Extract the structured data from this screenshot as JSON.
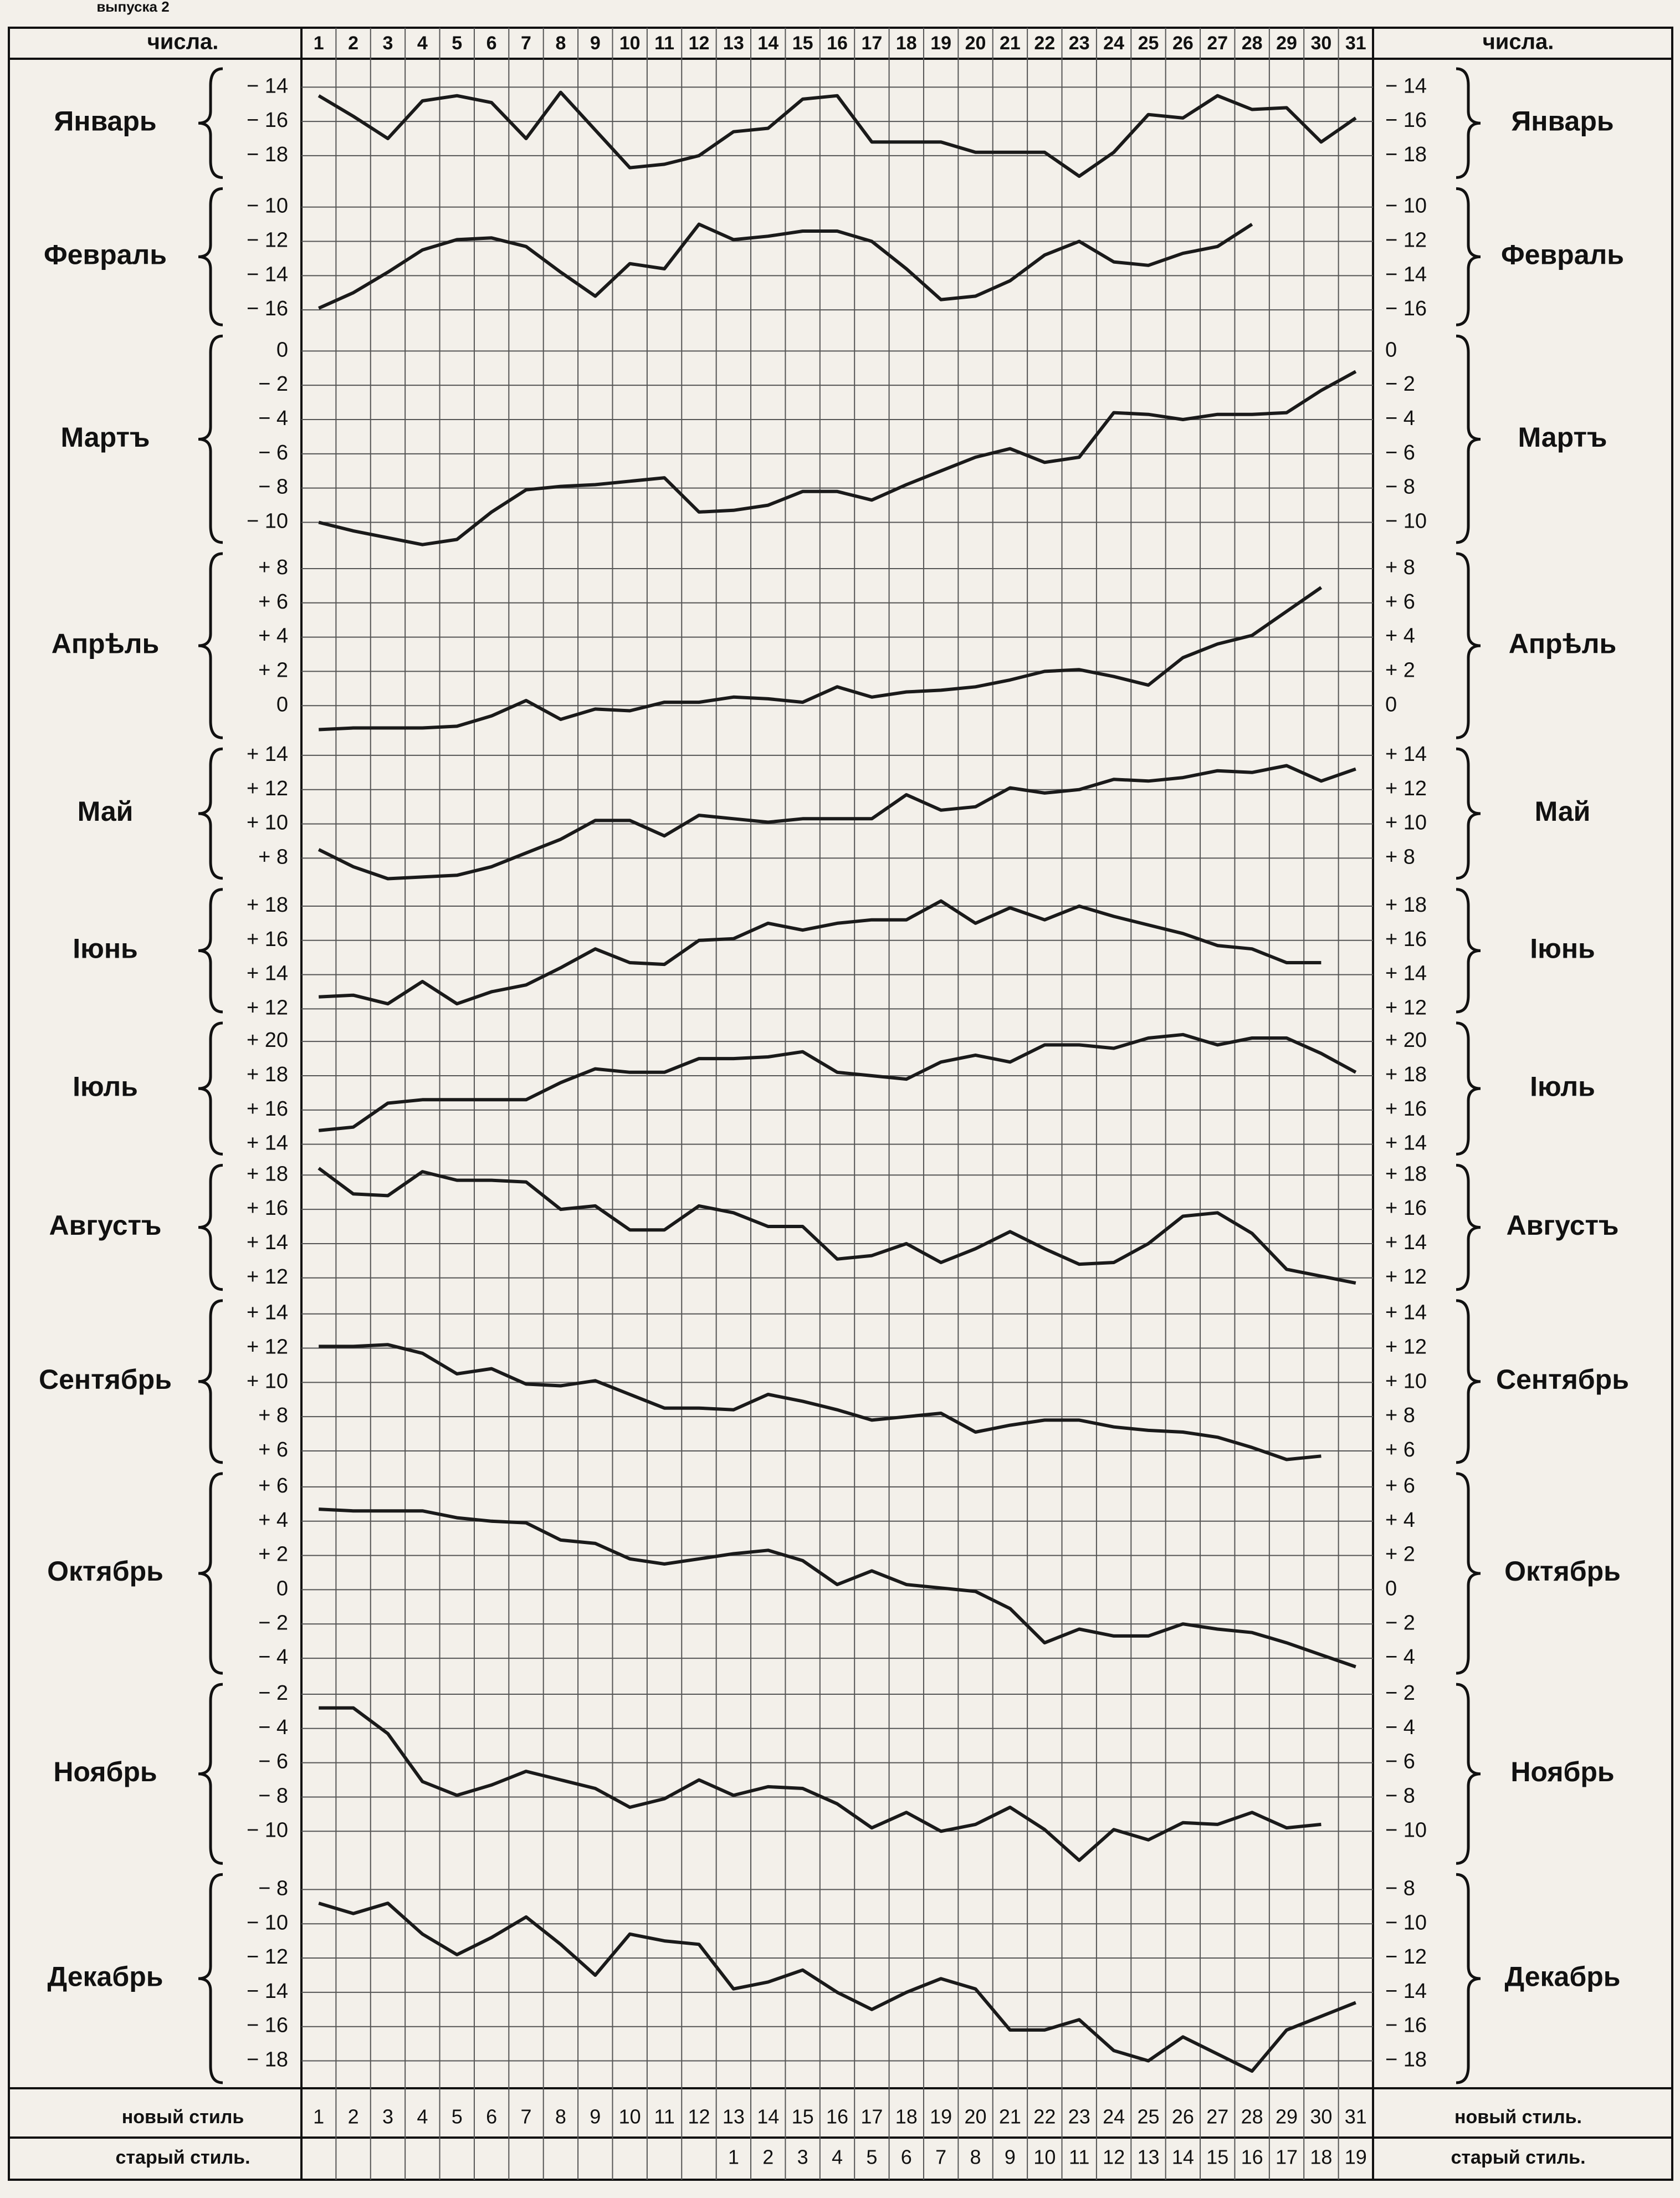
{
  "note_top": "выпуска 2",
  "header": {
    "left": "числа.",
    "right": "числа."
  },
  "days": [
    1,
    2,
    3,
    4,
    5,
    6,
    7,
    8,
    9,
    10,
    11,
    12,
    13,
    14,
    15,
    16,
    17,
    18,
    19,
    20,
    21,
    22,
    23,
    24,
    25,
    26,
    27,
    28,
    29,
    30,
    31
  ],
  "footer": {
    "new_style_left": "новый стиль",
    "new_style_right": "новый стиль.",
    "old_style_left": "старый стиль.",
    "old_style_right": "старый стиль.",
    "new_style_days": [
      1,
      2,
      3,
      4,
      5,
      6,
      7,
      8,
      9,
      10,
      11,
      12,
      13,
      14,
      15,
      16,
      17,
      18,
      19,
      20,
      21,
      22,
      23,
      24,
      25,
      26,
      27,
      28,
      29,
      30,
      31
    ],
    "old_style_days": [
      null,
      null,
      null,
      null,
      null,
      null,
      null,
      null,
      null,
      null,
      null,
      null,
      1,
      2,
      3,
      4,
      5,
      6,
      7,
      8,
      9,
      10,
      11,
      12,
      13,
      14,
      15,
      16,
      17,
      18,
      19
    ]
  },
  "chart_data": [
    {
      "type": "line",
      "title": "Январь",
      "xlim": [
        0.5,
        31.5
      ],
      "ylim": [
        -19.6,
        -12.6
      ],
      "yticks": [
        {
          "value": -14,
          "label": "− 14"
        },
        {
          "value": -16,
          "label": "− 16"
        },
        {
          "value": -18,
          "label": "− 18"
        }
      ],
      "x": [
        1,
        2,
        3,
        4,
        5,
        6,
        7,
        8,
        9,
        10,
        11,
        12,
        13,
        14,
        15,
        16,
        17,
        18,
        19,
        20,
        21,
        22,
        23,
        24,
        25,
        26,
        27,
        28,
        29,
        30,
        31
      ],
      "values": [
        -14.5,
        -15.7,
        -17,
        -14.8,
        -14.5,
        -14.9,
        -17,
        -14.3,
        -16.5,
        -18.7,
        -18.5,
        -18,
        -16.6,
        -16.4,
        -14.7,
        -14.5,
        -17.2,
        -17.2,
        -17.2,
        -17.8,
        -17.8,
        -17.8,
        -19.2,
        -17.8,
        -15.6,
        -15.8,
        -14.5,
        -15.3,
        -15.2,
        -17.2,
        -15.8
      ],
      "color": "#1a1a1a"
    },
    {
      "type": "line",
      "title": "Февраль",
      "xlim": [
        0.5,
        31.5
      ],
      "ylim": [
        -17.2,
        -8.6
      ],
      "yticks": [
        {
          "value": -10,
          "label": "− 10"
        },
        {
          "value": -12,
          "label": "− 12"
        },
        {
          "value": -14,
          "label": "− 14"
        },
        {
          "value": -16,
          "label": "− 16"
        }
      ],
      "x": [
        1,
        2,
        3,
        4,
        5,
        6,
        7,
        8,
        9,
        10,
        11,
        12,
        13,
        14,
        15,
        16,
        17,
        18,
        19,
        20,
        21,
        22,
        23,
        24,
        25,
        26,
        27,
        28
      ],
      "values": [
        -15.9,
        -15,
        -13.8,
        -12.5,
        -11.9,
        -11.8,
        -12.3,
        -13.8,
        -15.2,
        -13.3,
        -13.6,
        -11,
        -11.9,
        -11.7,
        -11.4,
        -11.4,
        -12,
        -13.6,
        -15.4,
        -15.2,
        -14.3,
        -12.8,
        -12,
        -13.2,
        -13.4,
        -12.7,
        -12.3,
        -11
      ],
      "color": "#1a1a1a"
    },
    {
      "type": "line",
      "title": "Мартъ",
      "xlim": [
        0.5,
        31.5
      ],
      "ylim": [
        -11.5,
        1.2
      ],
      "yticks": [
        0,
        {
          "value": -2,
          "label": "− 2"
        },
        {
          "value": -4,
          "label": "− 4"
        },
        {
          "value": -6,
          "label": "− 6"
        },
        {
          "value": -8,
          "label": "− 8"
        },
        {
          "value": -10,
          "label": "− 10"
        }
      ],
      "x": [
        1,
        2,
        3,
        4,
        5,
        6,
        7,
        8,
        9,
        10,
        11,
        12,
        13,
        14,
        15,
        16,
        17,
        18,
        19,
        20,
        21,
        22,
        23,
        24,
        25,
        26,
        27,
        28,
        29,
        30,
        31
      ],
      "values": [
        -10,
        -10.5,
        -10.9,
        -11.3,
        -11,
        -9.4,
        -8.1,
        -7.9,
        -7.8,
        -7.6,
        -7.4,
        -9.4,
        -9.3,
        -9,
        -8.2,
        -8.2,
        -8.7,
        -7.8,
        -7,
        -6.2,
        -5.7,
        -6.5,
        -6.2,
        -3.6,
        -3.7,
        -4,
        -3.7,
        -3.7,
        -3.6,
        -2.3,
        -1.2
      ],
      "color": "#1a1a1a"
    },
    {
      "type": "line",
      "title": "Апрѣль",
      "xlim": [
        0.5,
        31.5
      ],
      "ylim": [
        -2.2,
        9.2
      ],
      "yticks": [
        {
          "value": 8,
          "label": "+ 8"
        },
        {
          "value": 6,
          "label": "+ 6"
        },
        {
          "value": 4,
          "label": "+ 4"
        },
        {
          "value": 2,
          "label": "+ 2"
        },
        0
      ],
      "x": [
        1,
        2,
        3,
        4,
        5,
        6,
        7,
        8,
        9,
        10,
        11,
        12,
        13,
        14,
        15,
        16,
        17,
        18,
        19,
        20,
        21,
        22,
        23,
        24,
        25,
        26,
        27,
        28,
        29,
        30
      ],
      "values": [
        -1.4,
        -1.3,
        -1.3,
        -1.3,
        -1.2,
        -0.6,
        0.3,
        -0.8,
        -0.2,
        -0.3,
        0.2,
        0.2,
        0.5,
        0.4,
        0.2,
        1.1,
        0.5,
        0.8,
        0.9,
        1.1,
        1.5,
        2,
        2.1,
        1.7,
        1.2,
        2.8,
        3.6,
        4.1,
        5.5,
        6.9
      ],
      "color": "#1a1a1a"
    },
    {
      "type": "line",
      "title": "Май",
      "xlim": [
        0.5,
        31.5
      ],
      "ylim": [
        6.5,
        14.7
      ],
      "yticks": [
        {
          "value": 14,
          "label": "+ 14"
        },
        {
          "value": 12,
          "label": "+ 12"
        },
        {
          "value": 10,
          "label": "+ 10"
        },
        {
          "value": 8,
          "label": "+ 8"
        }
      ],
      "x": [
        1,
        2,
        3,
        4,
        5,
        6,
        7,
        8,
        9,
        10,
        11,
        12,
        13,
        14,
        15,
        16,
        17,
        18,
        19,
        20,
        21,
        22,
        23,
        24,
        25,
        26,
        27,
        28,
        29,
        30,
        31
      ],
      "values": [
        8.5,
        7.5,
        6.8,
        6.9,
        7,
        7.5,
        8.3,
        9.1,
        10.2,
        10.2,
        9.3,
        10.5,
        10.3,
        10.1,
        10.3,
        10.3,
        10.3,
        11.7,
        10.8,
        11,
        12.1,
        11.8,
        12,
        12.6,
        12.5,
        12.7,
        13.1,
        13,
        13.4,
        12.5,
        13.2
      ],
      "color": "#1a1a1a"
    },
    {
      "type": "line",
      "title": "Іюнь",
      "xlim": [
        0.5,
        31.5
      ],
      "ylim": [
        11.5,
        19.3
      ],
      "yticks": [
        {
          "value": 18,
          "label": "+ 18"
        },
        {
          "value": 16,
          "label": "+ 16"
        },
        {
          "value": 14,
          "label": "+ 14"
        },
        {
          "value": 12,
          "label": "+ 12"
        }
      ],
      "x": [
        1,
        2,
        3,
        4,
        5,
        6,
        7,
        8,
        9,
        10,
        11,
        12,
        13,
        14,
        15,
        16,
        17,
        18,
        19,
        20,
        21,
        22,
        23,
        24,
        25,
        26,
        27,
        28,
        29,
        30
      ],
      "values": [
        12.7,
        12.8,
        12.3,
        13.6,
        12.3,
        13,
        13.4,
        14.4,
        15.5,
        14.7,
        14.6,
        16,
        16.1,
        17,
        16.6,
        17,
        17.2,
        17.2,
        18.3,
        17,
        17.9,
        17.2,
        18,
        17.4,
        16.9,
        16.4,
        15.7,
        15.5,
        14.7,
        14.7
      ],
      "color": "#1a1a1a"
    },
    {
      "type": "line",
      "title": "Іюль",
      "xlim": [
        0.5,
        31.5
      ],
      "ylim": [
        13.1,
        21.4
      ],
      "yticks": [
        {
          "value": 20,
          "label": "+ 20"
        },
        {
          "value": 18,
          "label": "+ 18"
        },
        {
          "value": 16,
          "label": "+ 16"
        },
        {
          "value": 14,
          "label": "+ 14"
        }
      ],
      "x": [
        1,
        2,
        3,
        4,
        5,
        6,
        7,
        8,
        9,
        10,
        11,
        12,
        13,
        14,
        15,
        16,
        17,
        18,
        19,
        20,
        21,
        22,
        23,
        24,
        25,
        26,
        27,
        28,
        29,
        30,
        31
      ],
      "values": [
        14.8,
        15,
        16.4,
        16.6,
        16.6,
        16.6,
        16.6,
        17.6,
        18.4,
        18.2,
        18.2,
        19,
        19,
        19.1,
        19.4,
        18.2,
        18,
        17.8,
        18.8,
        19.2,
        18.8,
        19.8,
        19.8,
        19.6,
        20.2,
        20.4,
        19.8,
        20.2,
        20.2,
        19.3,
        18.2
      ],
      "color": "#1a1a1a"
    },
    {
      "type": "line",
      "title": "Августъ",
      "xlim": [
        0.5,
        31.5
      ],
      "ylim": [
        11,
        18.9
      ],
      "yticks": [
        {
          "value": 18,
          "label": "+ 18"
        },
        {
          "value": 16,
          "label": "+ 16"
        },
        {
          "value": 14,
          "label": "+ 14"
        },
        {
          "value": 12,
          "label": "+ 12"
        }
      ],
      "x": [
        1,
        2,
        3,
        4,
        5,
        6,
        7,
        8,
        9,
        10,
        11,
        12,
        13,
        14,
        15,
        16,
        17,
        18,
        19,
        20,
        21,
        22,
        23,
        24,
        25,
        26,
        27,
        28,
        29,
        30,
        31
      ],
      "values": [
        18.4,
        16.9,
        16.8,
        18.2,
        17.7,
        17.7,
        17.6,
        16,
        16.2,
        14.8,
        14.8,
        16.2,
        15.8,
        15,
        15,
        13.1,
        13.3,
        14,
        12.9,
        13.7,
        14.7,
        13.7,
        12.8,
        12.9,
        14,
        15.6,
        15.8,
        14.6,
        12.5,
        12.1,
        11.7
      ],
      "color": "#1a1a1a"
    },
    {
      "type": "line",
      "title": "Сентябрь",
      "xlim": [
        0.5,
        31.5
      ],
      "ylim": [
        5,
        15.1
      ],
      "yticks": [
        {
          "value": 14,
          "label": "+ 14"
        },
        {
          "value": 12,
          "label": "+ 12"
        },
        {
          "value": 10,
          "label": "+ 10"
        },
        {
          "value": 8,
          "label": "+ 8"
        },
        {
          "value": 6,
          "label": "+ 6"
        }
      ],
      "x": [
        1,
        2,
        3,
        4,
        5,
        6,
        7,
        8,
        9,
        10,
        11,
        12,
        13,
        14,
        15,
        16,
        17,
        18,
        19,
        20,
        21,
        22,
        23,
        24,
        25,
        26,
        27,
        28,
        29,
        30
      ],
      "values": [
        12.1,
        12.1,
        12.2,
        11.7,
        10.5,
        10.8,
        9.9,
        9.8,
        10.1,
        9.3,
        8.5,
        8.5,
        8.4,
        9.3,
        8.9,
        8.4,
        7.8,
        8,
        8.2,
        7.1,
        7.5,
        7.8,
        7.8,
        7.4,
        7.2,
        7.1,
        6.8,
        6.2,
        5.5,
        5.7
      ],
      "color": "#1a1a1a"
    },
    {
      "type": "line",
      "title": "Октябрь",
      "xlim": [
        0.5,
        31.5
      ],
      "ylim": [
        -5.2,
        7.1
      ],
      "yticks": [
        {
          "value": 6,
          "label": "+ 6"
        },
        {
          "value": 4,
          "label": "+ 4"
        },
        {
          "value": 2,
          "label": "+ 2"
        },
        0,
        {
          "value": -2,
          "label": "− 2"
        },
        {
          "value": -4,
          "label": "− 4"
        }
      ],
      "x": [
        1,
        2,
        3,
        4,
        5,
        6,
        7,
        8,
        9,
        10,
        11,
        12,
        13,
        14,
        15,
        16,
        17,
        18,
        19,
        20,
        21,
        22,
        23,
        24,
        25,
        26,
        27,
        28,
        29,
        30,
        31
      ],
      "values": [
        4.7,
        4.6,
        4.6,
        4.6,
        4.2,
        4,
        3.9,
        2.9,
        2.7,
        1.8,
        1.5,
        1.8,
        2.1,
        2.3,
        1.7,
        0.3,
        1.1,
        0.3,
        0.1,
        -0.1,
        -1.1,
        -3.1,
        -2.3,
        -2.7,
        -2.7,
        -2,
        -2.3,
        -2.5,
        -3.1,
        -3.8,
        -4.5
      ],
      "color": "#1a1a1a"
    },
    {
      "type": "line",
      "title": "Ноябрь",
      "xlim": [
        0.5,
        31.5
      ],
      "ylim": [
        -12.2,
        -1.1
      ],
      "yticks": [
        {
          "value": -2,
          "label": "− 2"
        },
        {
          "value": -4,
          "label": "− 4"
        },
        {
          "value": -6,
          "label": "− 6"
        },
        {
          "value": -8,
          "label": "− 8"
        },
        {
          "value": -10,
          "label": "− 10"
        }
      ],
      "x": [
        1,
        2,
        3,
        4,
        5,
        6,
        7,
        8,
        9,
        10,
        11,
        12,
        13,
        14,
        15,
        16,
        17,
        18,
        19,
        20,
        21,
        22,
        23,
        24,
        25,
        26,
        27,
        28,
        29,
        30
      ],
      "values": [
        -2.8,
        -2.8,
        -4.3,
        -7.1,
        -7.9,
        -7.3,
        -6.5,
        -7,
        -7.5,
        -8.6,
        -8.1,
        -7,
        -7.9,
        -7.4,
        -7.5,
        -8.4,
        -9.8,
        -8.9,
        -10,
        -9.6,
        -8.6,
        -9.9,
        -11.7,
        -9.9,
        -10.5,
        -9.5,
        -9.6,
        -8.9,
        -9.8,
        -9.6
      ],
      "color": "#1a1a1a"
    },
    {
      "type": "line",
      "title": "Декабрь",
      "xlim": [
        0.5,
        31.5
      ],
      "ylim": [
        -19.6,
        -6.8
      ],
      "yticks": [
        {
          "value": -8,
          "label": "− 8"
        },
        {
          "value": -10,
          "label": "− 10"
        },
        {
          "value": -12,
          "label": "− 12"
        },
        {
          "value": -14,
          "label": "− 14"
        },
        {
          "value": -16,
          "label": "− 16"
        },
        {
          "value": -18,
          "label": "− 18"
        }
      ],
      "x": [
        1,
        2,
        3,
        4,
        5,
        6,
        7,
        8,
        9,
        10,
        11,
        12,
        13,
        14,
        15,
        16,
        17,
        18,
        19,
        20,
        21,
        22,
        23,
        24,
        25,
        26,
        27,
        28,
        29,
        30,
        31
      ],
      "values": [
        -8.8,
        -9.4,
        -8.8,
        -10.6,
        -11.8,
        -10.8,
        -9.6,
        -11.2,
        -13,
        -10.6,
        -11,
        -11.2,
        -13.8,
        -13.4,
        -12.7,
        -14,
        -15,
        -14,
        -13.2,
        -13.8,
        -16.2,
        -16.2,
        -15.6,
        -17.4,
        -18,
        -16.6,
        -17.6,
        -18.6,
        -16.2,
        -15.4,
        -14.6
      ],
      "color": "#1a1a1a"
    }
  ]
}
